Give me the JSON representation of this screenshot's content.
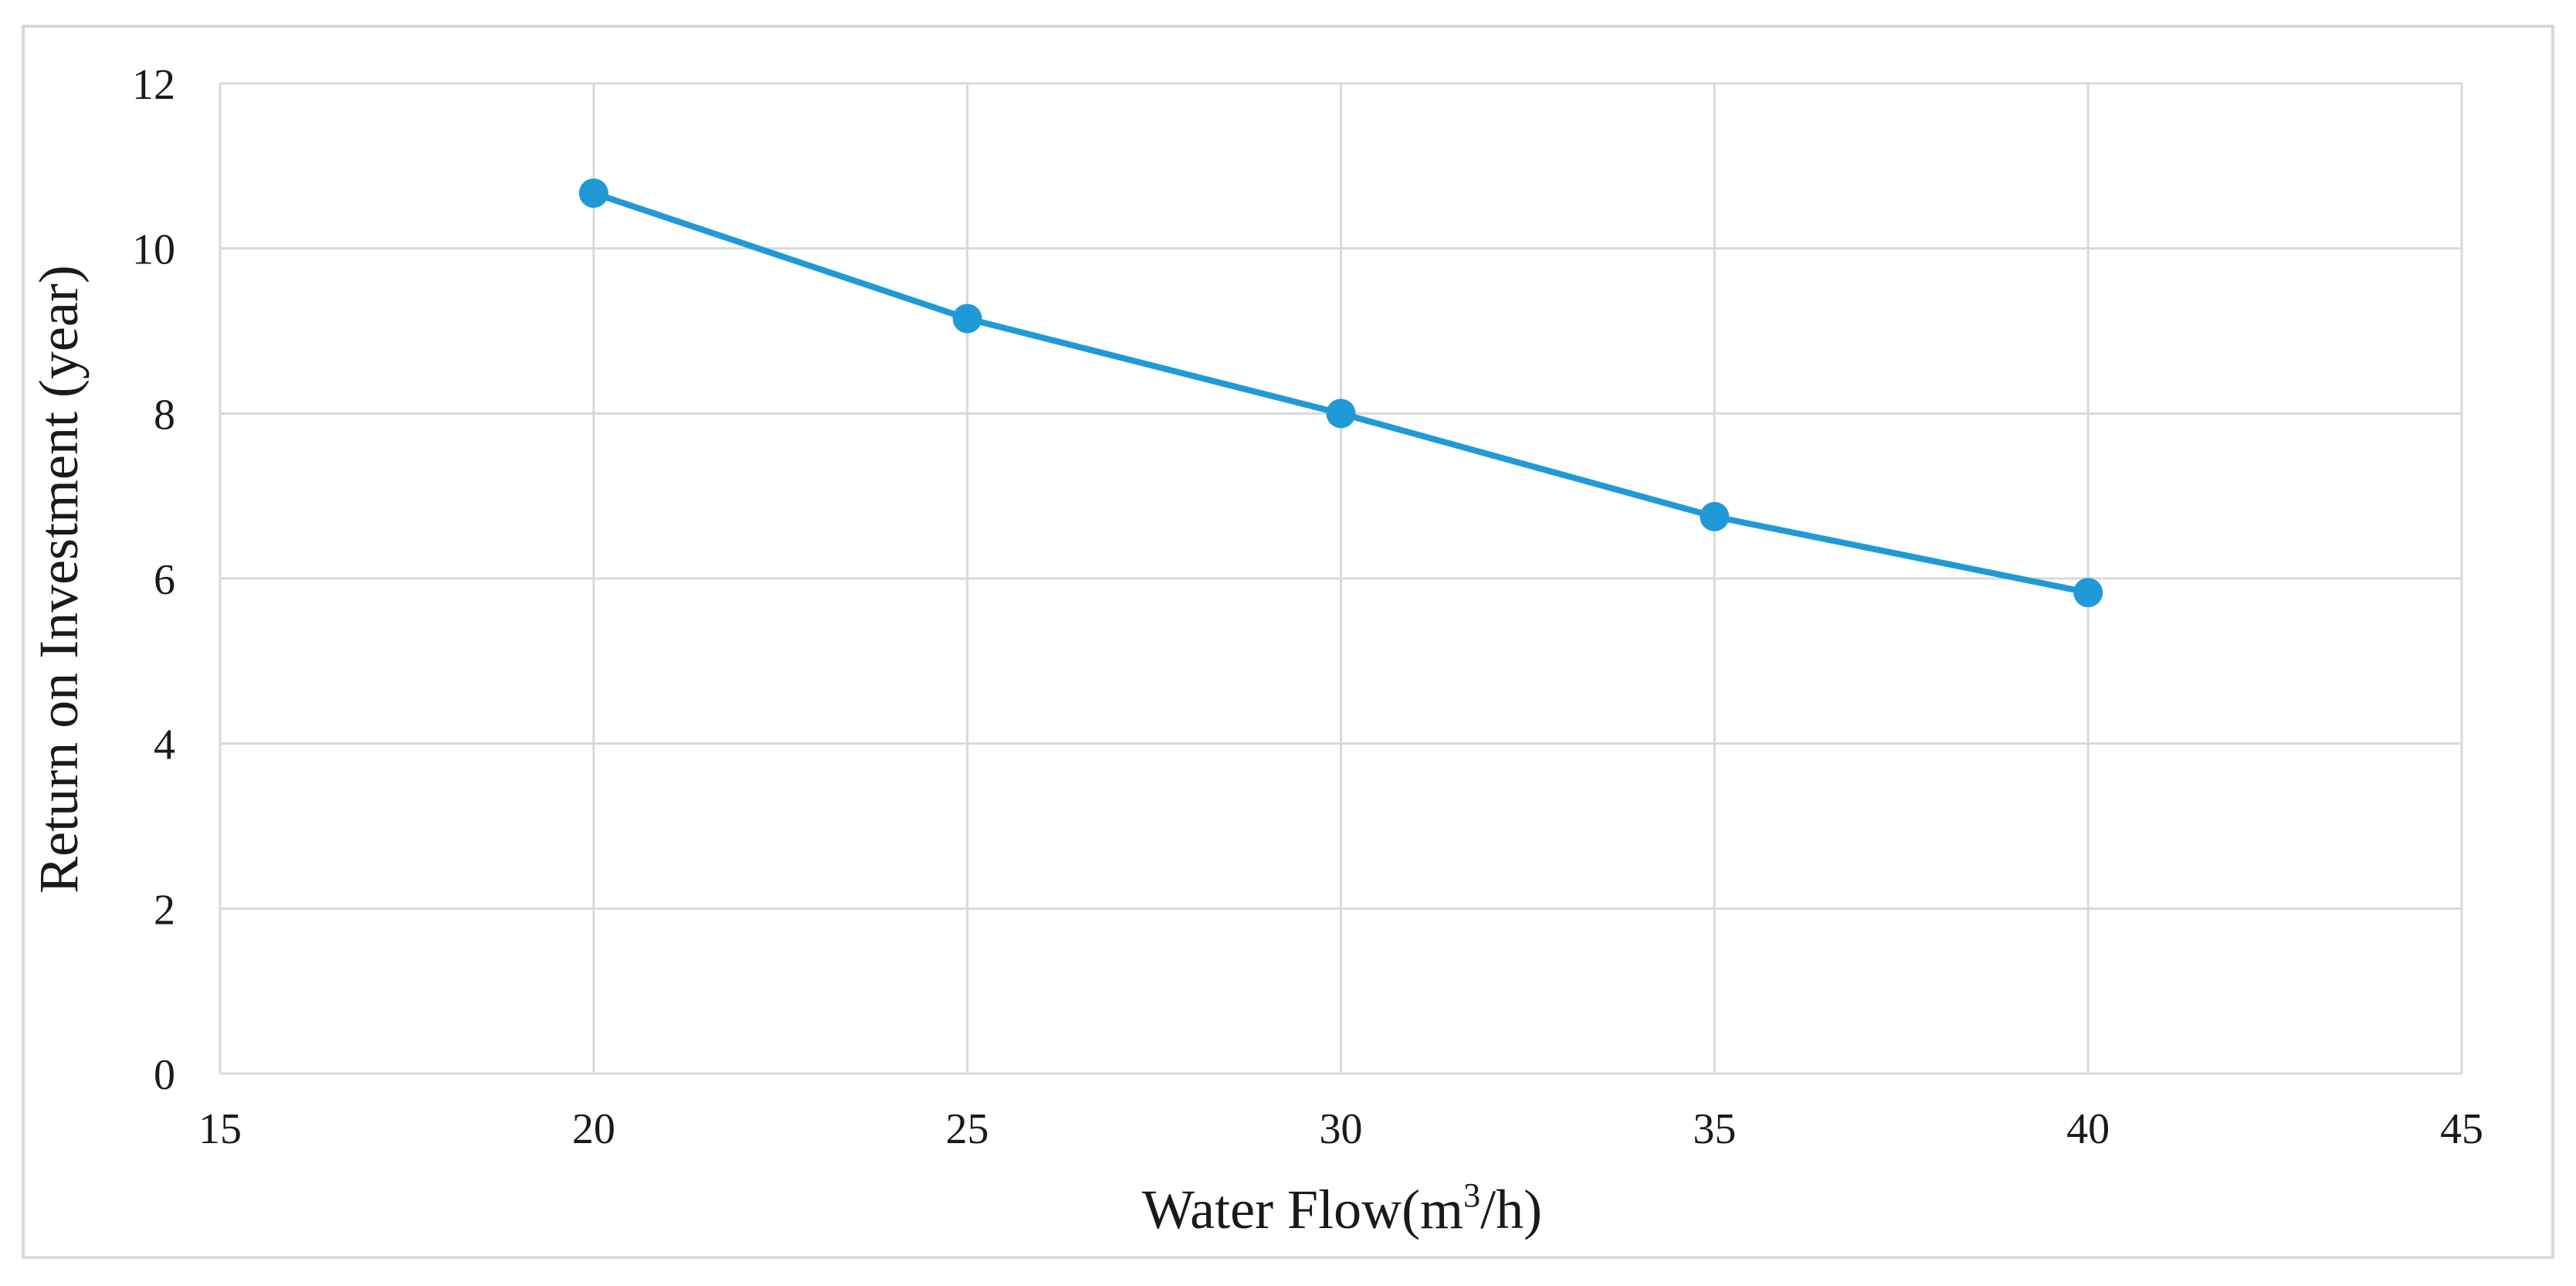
{
  "chart_data": {
    "type": "line",
    "title": "",
    "xlabel_parts": [
      "Water Flow(m",
      "3",
      "/h)"
    ],
    "ylabel": "Return on Investment (year)",
    "x": [
      20,
      25,
      30,
      35,
      40
    ],
    "series": [
      {
        "name": "Return on Investment",
        "values": [
          10.67,
          9.15,
          8.0,
          6.75,
          5.83
        ]
      }
    ],
    "xlim": [
      15,
      45
    ],
    "ylim": [
      0,
      12
    ],
    "xticks": [
      "15",
      "20",
      "25",
      "30",
      "35",
      "40",
      "45"
    ],
    "yticks": [
      "0",
      "2",
      "4",
      "6",
      "8",
      "10",
      "12"
    ],
    "grid": true,
    "legend": "none",
    "colors": {
      "series": "#1f9ad6",
      "grid": "#d9d9d9",
      "frame": "#d9d9d9"
    }
  }
}
